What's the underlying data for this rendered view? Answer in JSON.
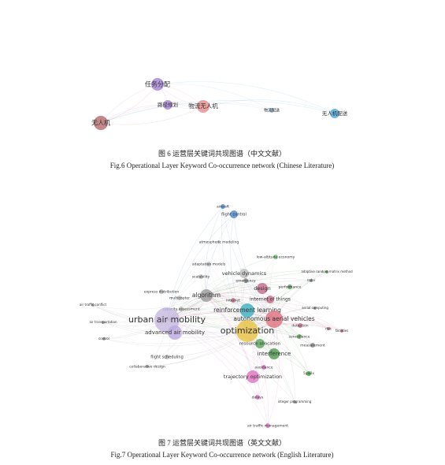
{
  "figures": [
    {
      "nodes": [
        {
          "label": "任务分配"
        },
        {
          "label": "路径规划"
        },
        {
          "label": "物流无人机"
        },
        {
          "label": "无人机"
        },
        {
          "label": "物流配送"
        },
        {
          "label": "无人机配送"
        }
      ],
      "caption_zh": "图 6 运营层关键词共现图谱（中文文献）",
      "caption_en": "Fig.6 Operational Layer Keyword Co-occurrence network (Chinese Literature)"
    },
    {
      "nodes": [
        {
          "label": "aircraft"
        },
        {
          "label": "flight control"
        },
        {
          "label": "atmospheric modeling"
        },
        {
          "label": "low-altitude economy"
        },
        {
          "label": "adaptation models"
        },
        {
          "label": "vehicle dynamics"
        },
        {
          "label": "adaptive random matrix method"
        },
        {
          "label": "scalability"
        },
        {
          "label": "emergency"
        },
        {
          "label": "radar"
        },
        {
          "label": "performance"
        },
        {
          "label": "design"
        },
        {
          "label": "express distribution"
        },
        {
          "label": "algorithm"
        },
        {
          "label": "internet of things"
        },
        {
          "label": "multicopter"
        },
        {
          "label": "internet"
        },
        {
          "label": "air traffic conflict"
        },
        {
          "label": "capacity assessment"
        },
        {
          "label": "reinforcement learning"
        },
        {
          "label": "aerial computing"
        },
        {
          "label": "urban air mobility"
        },
        {
          "label": "autonomous aerial vehicles"
        },
        {
          "label": "air transportation"
        },
        {
          "label": "optimization"
        },
        {
          "label": "risk"
        },
        {
          "label": "facilities"
        },
        {
          "label": "detection"
        },
        {
          "label": "advanced air mobility"
        },
        {
          "label": "surveillance"
        },
        {
          "label": "control"
        },
        {
          "label": "resource allocation"
        },
        {
          "label": "measurement"
        },
        {
          "label": "interference"
        },
        {
          "label": "flight scheduling"
        },
        {
          "label": "collaborative design"
        },
        {
          "label": "avoidance"
        },
        {
          "label": "trajectory optimization"
        },
        {
          "label": "5g-v2x"
        },
        {
          "label": "delays"
        },
        {
          "label": "integer programming"
        },
        {
          "label": "air traffic management"
        }
      ],
      "caption_zh": "图 7 运营层关键词共现图谱（英文文献）",
      "caption_en": "Fig.7 Operational Layer Keyword Co-occurrence network (English Literature)"
    }
  ]
}
